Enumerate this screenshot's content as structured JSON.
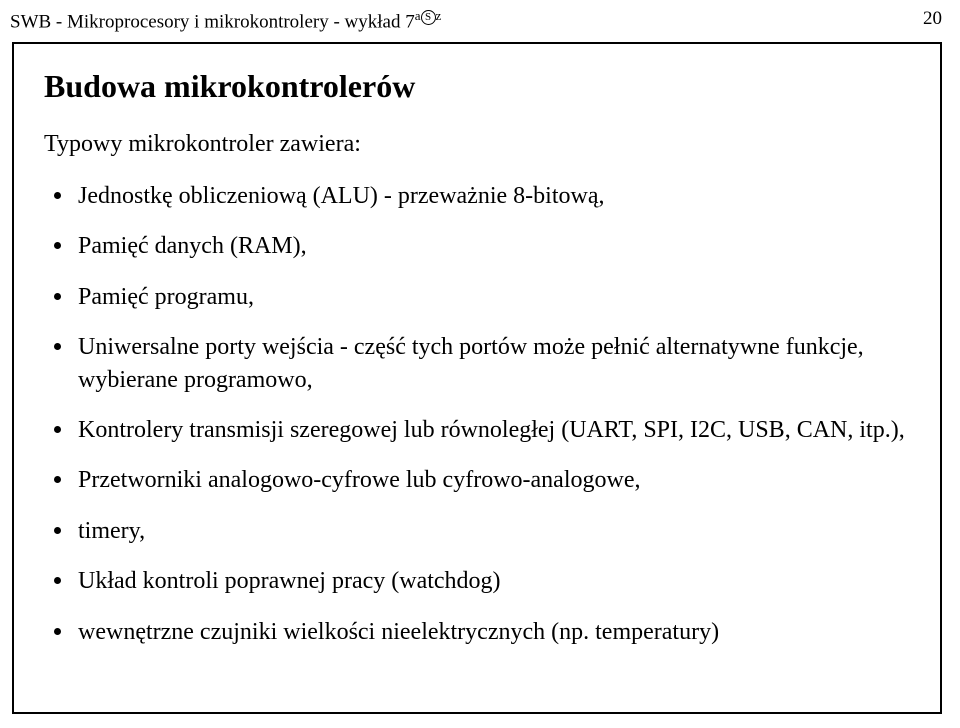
{
  "header": {
    "left_prefix": "SWB - Mikroprocesory i mikrokontrolery - wykład 7",
    "sup_a": "a",
    "sup_s": "S",
    "sup_z": "z",
    "page_number": "20"
  },
  "content": {
    "title": "Budowa mikrokontrolerów",
    "subtitle": "Typowy mikrokontroler zawiera:",
    "bullets": [
      "Jednostkę obliczeniową (ALU) - przeważnie 8-bitową,",
      "Pamięć danych (RAM),",
      "Pamięć programu,",
      "Uniwersalne porty wejścia - część tych portów może pełnić alternatywne funkcje, wybierane programowo,",
      "Kontrolery transmisji szeregowej lub równoległej (UART, SPI, I2C, USB, CAN, itp.),",
      "Przetworniki analogowo-cyfrowe lub cyfrowo-analogowe,",
      "timery,",
      "Układ kontroli poprawnej pracy (watchdog)",
      "wewnętrzne czujniki wielkości nieelektrycznych (np. temperatury)"
    ]
  }
}
